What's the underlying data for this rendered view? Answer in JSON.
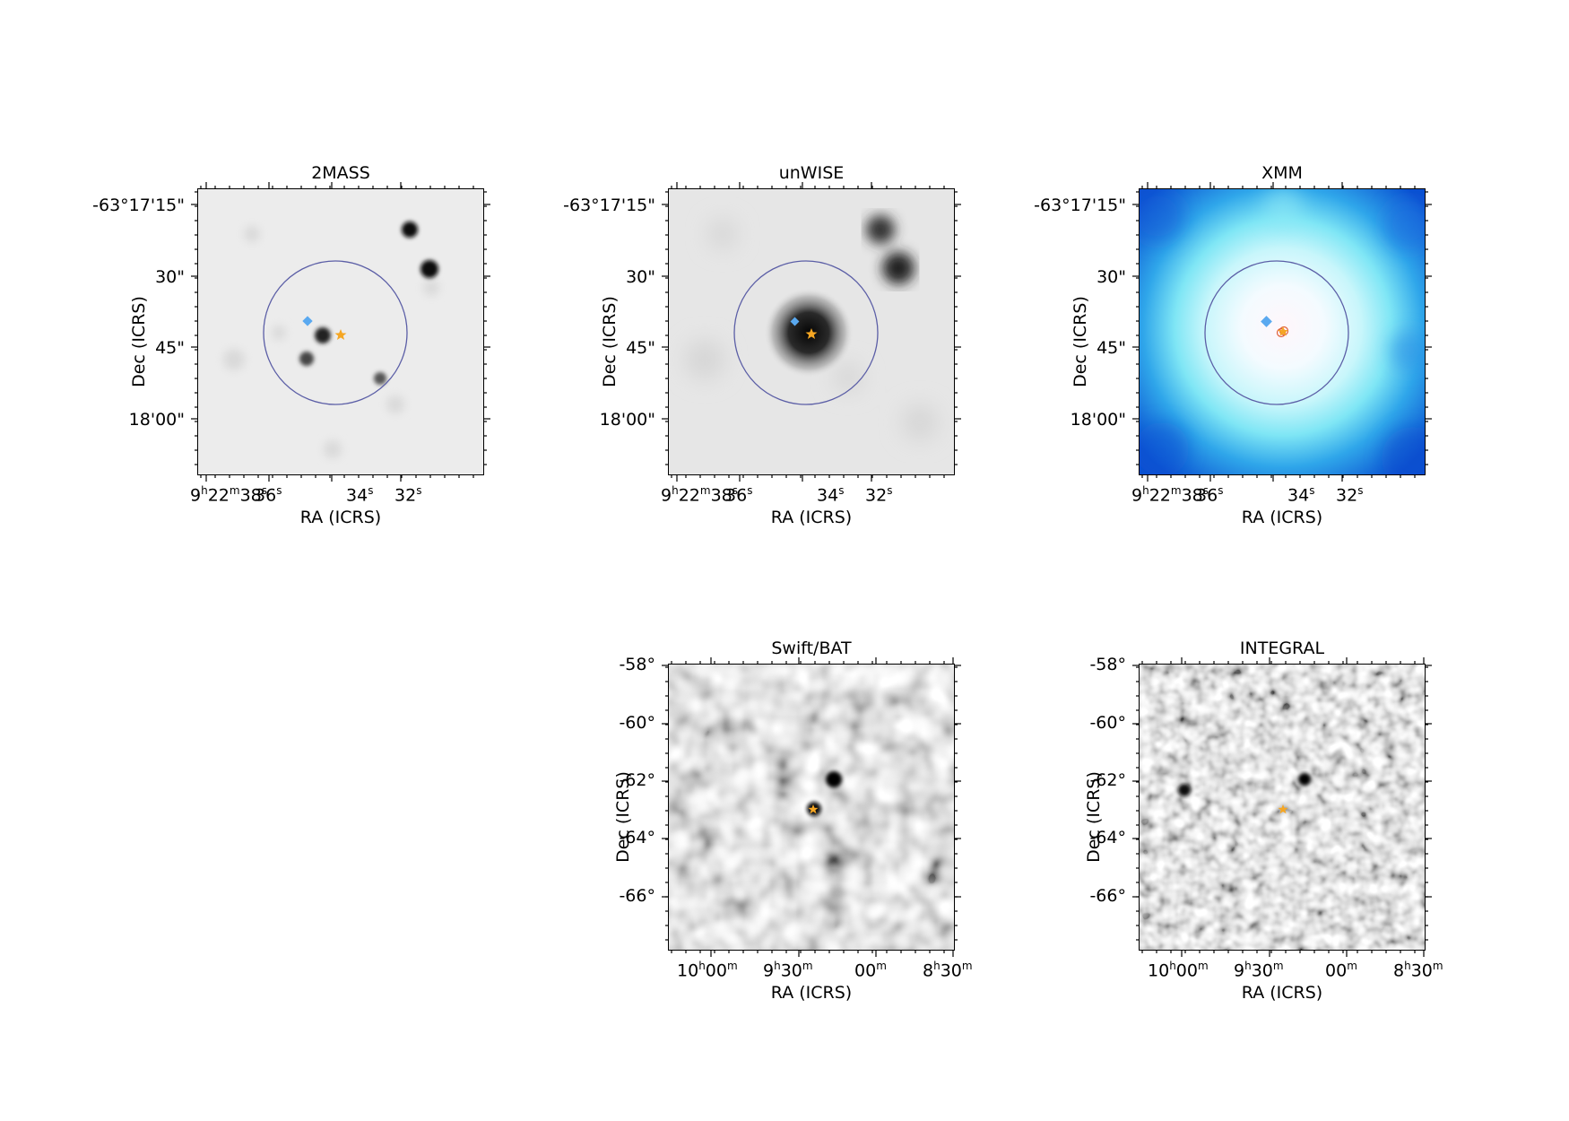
{
  "panels": {
    "p2mass": {
      "title": "2MASS",
      "xlabel": "RA (ICRS)",
      "ylabel": "Dec (ICRS)",
      "yticks": [
        "-63°17'15\"",
        "30\"",
        "45\"",
        "18'00\""
      ],
      "xticks": [
        {
          "h": "9",
          "hu": "h",
          "m": "22",
          "mu": "m",
          "s": "38",
          "su": "s"
        },
        {
          "s": "36",
          "su": "s"
        },
        {
          "s": "34",
          "su": "s"
        },
        {
          "s": "32",
          "su": "s"
        }
      ]
    },
    "punwise": {
      "title": "unWISE",
      "xlabel": "RA (ICRS)",
      "ylabel": "Dec (ICRS)",
      "yticks": [
        "-63°17'15\"",
        "30\"",
        "45\"",
        "18'00\""
      ],
      "xticks": [
        {
          "h": "9",
          "hu": "h",
          "m": "22",
          "mu": "m",
          "s": "38",
          "su": "s"
        },
        {
          "s": "36",
          "su": "s"
        },
        {
          "s": "34",
          "su": "s"
        },
        {
          "s": "32",
          "su": "s"
        }
      ]
    },
    "pxmm": {
      "title": "XMM",
      "xlabel": "RA (ICRS)",
      "ylabel": "Dec (ICRS)",
      "yticks": [
        "-63°17'15\"",
        "30\"",
        "45\"",
        "18'00\""
      ],
      "xticks": [
        {
          "h": "9",
          "hu": "h",
          "m": "22",
          "mu": "m",
          "s": "38",
          "su": "s"
        },
        {
          "s": "36",
          "su": "s"
        },
        {
          "s": "34",
          "su": "s"
        },
        {
          "s": "32",
          "su": "s"
        }
      ]
    },
    "pbat": {
      "title": "Swift/BAT",
      "xlabel": "RA (ICRS)",
      "ylabel": "Dec (ICRS)",
      "yticks": [
        "-58°",
        "-60°",
        "-62°",
        "-64°",
        "-66°"
      ],
      "xticks": [
        {
          "h": "10",
          "hu": "h",
          "m": "00",
          "mu": "m"
        },
        {
          "h": "9",
          "hu": "h",
          "m": "30",
          "mu": "m"
        },
        {
          "m": "00",
          "mu": "m"
        },
        {
          "h": "8",
          "hu": "h",
          "m": "30",
          "mu": "m"
        }
      ]
    },
    "pintegral": {
      "title": "INTEGRAL",
      "xlabel": "RA (ICRS)",
      "ylabel": "Dec (ICRS)",
      "yticks": [
        "-58°",
        "-60°",
        "-62°",
        "-64°",
        "-66°"
      ],
      "xticks": [
        {
          "h": "10",
          "hu": "h",
          "m": "00",
          "mu": "m"
        },
        {
          "h": "9",
          "hu": "h",
          "m": "30",
          "mu": "m"
        },
        {
          "m": "00",
          "mu": "m"
        },
        {
          "h": "8",
          "hu": "h",
          "m": "30",
          "mu": "m"
        }
      ]
    }
  },
  "colors": {
    "circle": "#5b5ea6",
    "source_star": "#f5a623",
    "source_dot": "#d62728",
    "diamond": "#5aa9f0"
  }
}
